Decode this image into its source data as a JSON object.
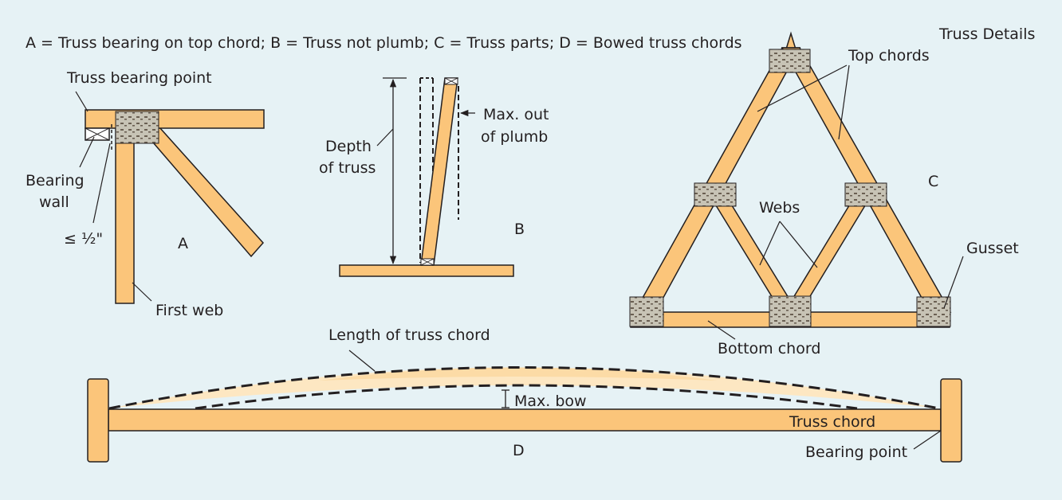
{
  "figure": {
    "title": "Truss Details",
    "caption": "A = Truss bearing on top chord; B = Truss not plumb; C = Truss parts; D = Bowed truss chords"
  },
  "colors": {
    "background": "#e6f2f5",
    "wood": "#fbc57a",
    "outline": "#231f20",
    "plate": "#c7c3b5",
    "plate_teeth": "#6a5f52"
  },
  "panel_a": {
    "letter": "A",
    "bearing_point_label": "Truss bearing point",
    "bearing_wall_line1": "Bearing",
    "bearing_wall_line2": "wall",
    "tolerance_label": "≤ ½\"",
    "first_web_label": "First web"
  },
  "panel_b": {
    "letter": "B",
    "depth_line1": "Depth",
    "depth_line2": "of truss",
    "plumb_line1": "Max. out",
    "plumb_line2": "of plumb"
  },
  "panel_c": {
    "letter": "C",
    "top_chords_label": "Top chords",
    "webs_label": "Webs",
    "gusset_label": "Gusset",
    "bottom_chord_label": "Bottom chord"
  },
  "panel_d": {
    "letter": "D",
    "length_label": "Length of truss chord",
    "max_bow_label": "Max. bow",
    "truss_chord_label": "Truss chord",
    "bearing_point_label": "Bearing point"
  }
}
